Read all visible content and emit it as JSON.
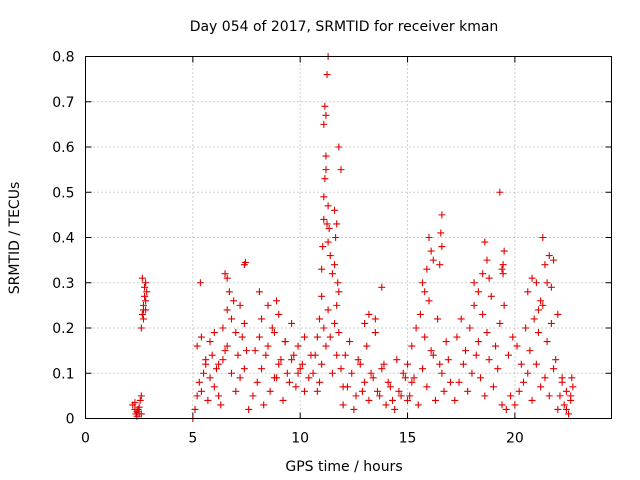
{
  "chart_data": {
    "type": "scatter",
    "title": "Day 054 of 2017, SRMTID for receiver kman",
    "xlabel": "GPS time / hours",
    "ylabel": "SRMTID / TECUs",
    "xlim": [
      0,
      24.5
    ],
    "ylim": [
      0,
      0.8
    ],
    "x_ticks": [
      0,
      5,
      10,
      15,
      20
    ],
    "x_tick_labels": [
      "0",
      "5",
      "10",
      "15",
      "20"
    ],
    "y_ticks": [
      0,
      0.1,
      0.2,
      0.3,
      0.4,
      0.5,
      0.6,
      0.7,
      0.8
    ],
    "y_tick_labels": [
      "0",
      "0.1",
      "0.2",
      "0.3",
      "0.4",
      "0.5",
      "0.6",
      "0.7",
      "0.8"
    ],
    "grid": true,
    "marker": "+",
    "marker_color": "#e00000",
    "series": [
      {
        "name": "SRMTID",
        "x": [
          2.2,
          2.3,
          2.35,
          2.4,
          2.45,
          2.5,
          2.55,
          2.6,
          2.3,
          2.4,
          2.5,
          2.6,
          2.6,
          2.65,
          2.7,
          2.7,
          2.75,
          2.8,
          2.8,
          2.85,
          2.65,
          2.75,
          2.7,
          2.8,
          5.0,
          5.1,
          5.2,
          5.3,
          5.4,
          5.5,
          5.6,
          5.7,
          5.8,
          5.9,
          6.0,
          6.1,
          6.2,
          6.3,
          6.4,
          6.5,
          5.2,
          5.4,
          5.6,
          5.8,
          6.0,
          6.2,
          6.4,
          6.6,
          6.8,
          7.0,
          7.1,
          7.2,
          7.3,
          7.4,
          6.6,
          6.7,
          6.8,
          6.9,
          7.0,
          7.2,
          7.4,
          7.5,
          5.35,
          6.5,
          6.6,
          7.4,
          7.45,
          7.6,
          7.8,
          8.0,
          8.2,
          8.4,
          8.6,
          8.8,
          9.0,
          9.2,
          9.4,
          9.6,
          9.8,
          10.0,
          7.9,
          8.1,
          8.3,
          8.5,
          8.7,
          8.9,
          9.1,
          9.3,
          9.5,
          9.7,
          9.9,
          10.1,
          10.2,
          10.4,
          8.2,
          8.5,
          8.8,
          9.0,
          9.3,
          9.6,
          9.9,
          10.2,
          10.5,
          8.1,
          8.9,
          10.6,
          10.7,
          10.8,
          10.9,
          11.0,
          11.0,
          11.05,
          11.1,
          11.1,
          11.15,
          11.2,
          11.2,
          11.25,
          11.3,
          11.3,
          11.35,
          11.1,
          11.15,
          11.2,
          11.25,
          11.3,
          11.4,
          11.5,
          11.6,
          11.7,
          11.8,
          11.9,
          11.65,
          11.75,
          11.7,
          11.8,
          11.6,
          10.8,
          10.9,
          11.0,
          11.1,
          11.2,
          11.3,
          11.4,
          11.5,
          11.6,
          11.7,
          11.8,
          11.9,
          12.0,
          12.0,
          12.2,
          12.4,
          12.6,
          12.8,
          13.0,
          13.2,
          13.4,
          13.6,
          13.8,
          14.0,
          14.2,
          12.1,
          12.3,
          12.5,
          12.7,
          12.9,
          13.1,
          13.3,
          13.5,
          13.7,
          13.9,
          14.1,
          14.3,
          13.0,
          13.2,
          13.5,
          13.8,
          14.4,
          14.6,
          14.8,
          15.0,
          15.2,
          14.5,
          14.7,
          14.9,
          15.0,
          15.2,
          15.4,
          15.6,
          15.8,
          16.0,
          16.2,
          16.4,
          16.6,
          16.8,
          17.0,
          15.1,
          15.3,
          15.5,
          15.7,
          15.9,
          16.1,
          16.3,
          16.5,
          16.7,
          16.9,
          15.7,
          15.9,
          16.0,
          16.1,
          16.5,
          16.55,
          16.6,
          16.6,
          15.8,
          16.2,
          17.2,
          17.4,
          17.6,
          17.8,
          18.0,
          18.2,
          18.4,
          18.6,
          18.8,
          19.0,
          19.2,
          19.4,
          17.3,
          17.5,
          17.7,
          17.9,
          18.1,
          18.3,
          18.5,
          18.7,
          18.9,
          19.1,
          19.3,
          18.1,
          18.3,
          18.5,
          18.6,
          18.7,
          18.8,
          19.3,
          19.4,
          19.45,
          19.5,
          19.5,
          19.45,
          19.6,
          19.8,
          20.0,
          20.2,
          20.4,
          20.6,
          20.8,
          21.0,
          21.2,
          21.4,
          21.6,
          21.8,
          19.7,
          19.9,
          20.1,
          20.3,
          20.5,
          20.7,
          20.9,
          21.1,
          21.3,
          21.5,
          21.7,
          21.9,
          20.6,
          20.8,
          21.0,
          21.2,
          21.3,
          21.4,
          21.6,
          21.7,
          21.8,
          22.0,
          21.1,
          21.5,
          22.0,
          22.1,
          22.2,
          22.3,
          22.4,
          22.5,
          22.6,
          22.7,
          22.2,
          22.4,
          22.6,
          22.65
        ],
        "y": [
          0.03,
          0.02,
          0.01,
          0.005,
          0.02,
          0.01,
          0.04,
          0.05,
          0.035,
          0.015,
          0.025,
          0.01,
          0.2,
          0.23,
          0.22,
          0.25,
          0.27,
          0.24,
          0.26,
          0.28,
          0.31,
          0.29,
          0.24,
          0.3,
          0.0,
          0.02,
          0.05,
          0.08,
          0.06,
          0.1,
          0.12,
          0.04,
          0.09,
          0.14,
          0.07,
          0.11,
          0.05,
          0.03,
          0.13,
          0.15,
          0.16,
          0.18,
          0.13,
          0.17,
          0.19,
          0.12,
          0.2,
          0.16,
          0.1,
          0.06,
          0.14,
          0.09,
          0.18,
          0.11,
          0.24,
          0.28,
          0.22,
          0.26,
          0.19,
          0.25,
          0.21,
          0.15,
          0.3,
          0.32,
          0.31,
          0.34,
          0.345,
          0.02,
          0.05,
          0.08,
          0.11,
          0.14,
          0.06,
          0.09,
          0.12,
          0.04,
          0.1,
          0.13,
          0.07,
          0.11,
          0.15,
          0.18,
          0.03,
          0.16,
          0.2,
          0.09,
          0.13,
          0.17,
          0.08,
          0.14,
          0.1,
          0.12,
          0.06,
          0.09,
          0.22,
          0.25,
          0.19,
          0.23,
          0.17,
          0.21,
          0.16,
          0.18,
          0.14,
          0.28,
          0.26,
          0.1,
          0.14,
          0.18,
          0.22,
          0.27,
          0.33,
          0.38,
          0.44,
          0.49,
          0.53,
          0.58,
          0.55,
          0.43,
          0.39,
          0.47,
          0.42,
          0.65,
          0.69,
          0.67,
          0.76,
          0.8,
          0.36,
          0.32,
          0.46,
          0.43,
          0.6,
          0.55,
          0.4,
          0.3,
          0.25,
          0.28,
          0.34,
          0.06,
          0.08,
          0.12,
          0.2,
          0.16,
          0.24,
          0.18,
          0.1,
          0.21,
          0.14,
          0.19,
          0.11,
          0.07,
          0.03,
          0.07,
          0.1,
          0.05,
          0.12,
          0.08,
          0.04,
          0.09,
          0.06,
          0.11,
          0.03,
          0.07,
          0.14,
          0.17,
          0.02,
          0.13,
          0.06,
          0.16,
          0.1,
          0.19,
          0.05,
          0.12,
          0.08,
          0.04,
          0.21,
          0.23,
          0.22,
          0.29,
          0.02,
          0.06,
          0.1,
          0.04,
          0.08,
          0.13,
          0.05,
          0.09,
          0.12,
          0.16,
          0.2,
          0.23,
          0.18,
          0.26,
          0.14,
          0.22,
          0.1,
          0.17,
          0.08,
          0.05,
          0.09,
          0.03,
          0.11,
          0.07,
          0.15,
          0.04,
          0.12,
          0.06,
          0.13,
          0.3,
          0.33,
          0.4,
          0.37,
          0.34,
          0.41,
          0.45,
          0.38,
          0.28,
          0.35,
          0.04,
          0.08,
          0.12,
          0.06,
          0.1,
          0.14,
          0.09,
          0.05,
          0.13,
          0.07,
          0.11,
          0.03,
          0.18,
          0.22,
          0.15,
          0.2,
          0.25,
          0.17,
          0.23,
          0.19,
          0.27,
          0.16,
          0.21,
          0.3,
          0.28,
          0.32,
          0.39,
          0.35,
          0.31,
          0.5,
          0.33,
          0.32,
          0.37,
          0.25,
          0.34,
          0.02,
          0.05,
          0.03,
          0.06,
          0.08,
          0.1,
          0.04,
          0.12,
          0.07,
          0.09,
          0.05,
          0.11,
          0.14,
          0.18,
          0.16,
          0.12,
          0.2,
          0.15,
          0.22,
          0.19,
          0.25,
          0.17,
          0.21,
          0.13,
          0.28,
          0.31,
          0.3,
          0.26,
          0.4,
          0.34,
          0.36,
          0.29,
          0.35,
          0.23,
          0.24,
          0.3,
          0.02,
          0.05,
          0.08,
          0.03,
          0.06,
          0.01,
          0.04,
          0.07,
          0.09,
          0.02,
          0.05,
          0.09
        ]
      }
    ]
  }
}
